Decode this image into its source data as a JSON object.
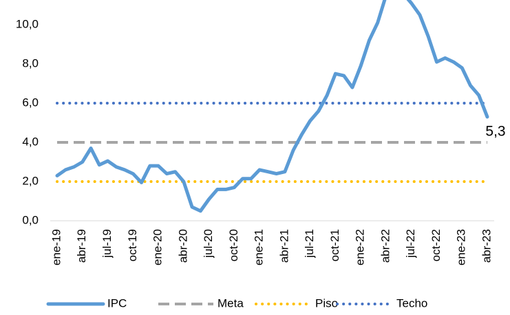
{
  "chart_data": {
    "type": "line",
    "categories": [
      "ene-19",
      null,
      null,
      "abr-19",
      null,
      null,
      "jul-19",
      null,
      null,
      "oct-19",
      null,
      null,
      "ene-20",
      null,
      null,
      "abr-20",
      null,
      null,
      "jul-20",
      null,
      null,
      "oct-20",
      null,
      null,
      "ene-21",
      null,
      null,
      "abr-21",
      null,
      null,
      "jul-21",
      null,
      null,
      "oct-21",
      null,
      null,
      "ene-22",
      null,
      null,
      "abr-22",
      null,
      null,
      "jul-22",
      null,
      null,
      "oct-22",
      null,
      null,
      "ene-23",
      null,
      null,
      "abr-23"
    ],
    "series": [
      {
        "name": "IPC",
        "color": "#5b9bd5",
        "style": "solid",
        "values": [
          2.3,
          2.6,
          2.75,
          3.0,
          3.7,
          2.85,
          3.05,
          2.75,
          2.6,
          2.4,
          1.95,
          2.8,
          2.8,
          2.4,
          2.5,
          2.0,
          0.7,
          0.5,
          1.1,
          1.6,
          1.6,
          1.7,
          2.15,
          2.15,
          2.6,
          2.5,
          2.4,
          2.5,
          3.6,
          4.4,
          5.1,
          5.6,
          6.4,
          7.5,
          7.4,
          6.8,
          7.9,
          9.2,
          10.1,
          11.5,
          11.4,
          11.6,
          11.1,
          10.5,
          9.4,
          8.1,
          8.3,
          8.1,
          7.8,
          6.9,
          6.4,
          5.3
        ],
        "value_labels": [
          null,
          null,
          null,
          null,
          null,
          null,
          null,
          null,
          null,
          null,
          null,
          null,
          null,
          null,
          null,
          null,
          null,
          null,
          null,
          null,
          null,
          null,
          null,
          null,
          null,
          null,
          null,
          null,
          null,
          null,
          null,
          null,
          null,
          null,
          null,
          null,
          null,
          null,
          null,
          null,
          null,
          null,
          null,
          null,
          null,
          null,
          null,
          null,
          null,
          null,
          null,
          "5,3"
        ]
      },
      {
        "name": "Meta",
        "color": "#a5a5a5",
        "style": "dashed",
        "values": [
          4,
          4,
          4,
          4,
          4,
          4,
          4,
          4,
          4,
          4,
          4,
          4,
          4,
          4,
          4,
          4,
          4,
          4,
          4,
          4,
          4,
          4,
          4,
          4,
          4,
          4,
          4,
          4,
          4,
          4,
          4,
          4,
          4,
          4,
          4,
          4,
          4,
          4,
          4,
          4,
          4,
          4,
          4,
          4,
          4,
          4,
          4,
          4,
          4,
          4,
          4,
          4
        ]
      },
      {
        "name": "Piso",
        "color": "#ffc000",
        "style": "dotted",
        "values": [
          2,
          2,
          2,
          2,
          2,
          2,
          2,
          2,
          2,
          2,
          2,
          2,
          2,
          2,
          2,
          2,
          2,
          2,
          2,
          2,
          2,
          2,
          2,
          2,
          2,
          2,
          2,
          2,
          2,
          2,
          2,
          2,
          2,
          2,
          2,
          2,
          2,
          2,
          2,
          2,
          2,
          2,
          2,
          2,
          2,
          2,
          2,
          2,
          2,
          2,
          2,
          2
        ]
      },
      {
        "name": "Techo",
        "color": "#4472c4",
        "style": "dotted",
        "values": [
          6,
          6,
          6,
          6,
          6,
          6,
          6,
          6,
          6,
          6,
          6,
          6,
          6,
          6,
          6,
          6,
          6,
          6,
          6,
          6,
          6,
          6,
          6,
          6,
          6,
          6,
          6,
          6,
          6,
          6,
          6,
          6,
          6,
          6,
          6,
          6,
          6,
          6,
          6,
          6,
          6,
          6,
          6,
          6,
          6,
          6,
          6,
          6,
          6,
          6,
          6,
          6
        ]
      }
    ],
    "ylim": [
      0,
      11.26
    ],
    "yticks": [
      {
        "value": 0,
        "label": "0,0"
      },
      {
        "value": 2,
        "label": "2,0"
      },
      {
        "value": 4,
        "label": "4,0"
      },
      {
        "value": 6,
        "label": "6,0"
      },
      {
        "value": 8,
        "label": "8,0"
      },
      {
        "value": 10,
        "label": "10,0"
      }
    ],
    "grid": false,
    "legend": "bottom"
  }
}
